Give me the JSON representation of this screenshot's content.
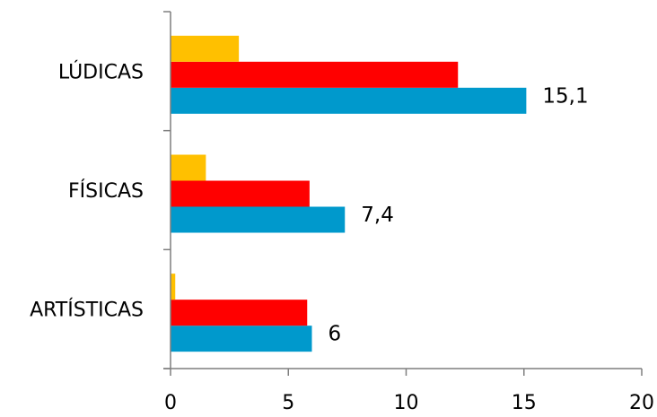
{
  "chart_data": {
    "type": "bar",
    "orientation": "horizontal",
    "categories": [
      "ARTÍSTICAS",
      "FÍSICAS",
      "LÚDICAS"
    ],
    "series": [
      {
        "values": [
          6.0,
          7.4,
          15.1
        ],
        "color": "#0099CC"
      },
      {
        "values": [
          5.8,
          5.9,
          12.2
        ],
        "color": "#FF0000"
      },
      {
        "values": [
          0.2,
          1.5,
          2.9
        ],
        "color": "#FFC000"
      }
    ],
    "data_labels": [
      {
        "category": "ARTÍSTICAS",
        "text": "6"
      },
      {
        "category": "FÍSICAS",
        "text": "7,4"
      },
      {
        "category": "LÚDICAS",
        "text": "15,1"
      }
    ],
    "x_ticks": [
      "0",
      "5",
      "10",
      "15",
      "20"
    ],
    "xlim": [
      0,
      20
    ],
    "grid": false,
    "legend": false
  }
}
